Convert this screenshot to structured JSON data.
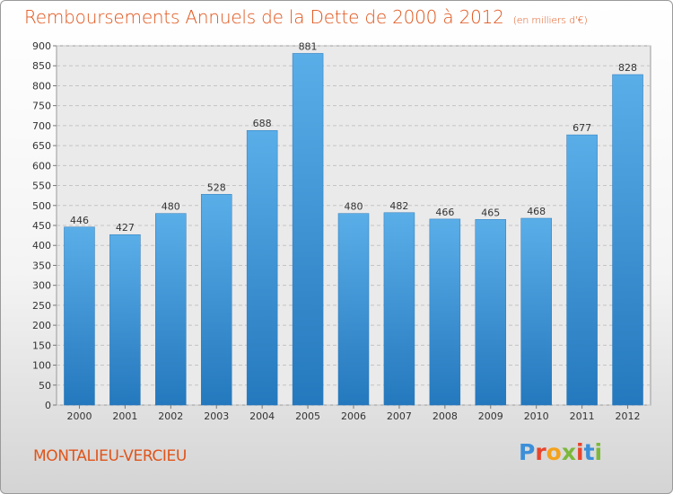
{
  "header": {
    "title": "Remboursements Annuels de la Dette de 2000 à 2012",
    "unit": "(en milliers d'€)"
  },
  "footer": {
    "commune": "MONTALIEU-VERCIEU",
    "logo_letters": [
      "P",
      "r",
      "o",
      "x",
      "i",
      "t",
      "i"
    ],
    "logo_colors": [
      "#3c8fd8",
      "#e8452c",
      "#f4a21c",
      "#7cb83a",
      "#e8452c",
      "#3c8fd8",
      "#7cb83a"
    ]
  },
  "chart_data": {
    "type": "bar",
    "categories": [
      "2000",
      "2001",
      "2002",
      "2003",
      "2004",
      "2005",
      "2006",
      "2007",
      "2008",
      "2009",
      "2010",
      "2011",
      "2012"
    ],
    "values": [
      446,
      427,
      480,
      528,
      688,
      881,
      480,
      482,
      466,
      465,
      468,
      677,
      828
    ],
    "ylim": [
      0,
      900
    ],
    "yticks": [
      0,
      50,
      100,
      150,
      200,
      250,
      300,
      350,
      400,
      450,
      500,
      550,
      600,
      650,
      700,
      750,
      800,
      850,
      900
    ],
    "grid": true,
    "bar_color_top": "#5aaee8",
    "bar_color_bottom": "#2478bd"
  }
}
